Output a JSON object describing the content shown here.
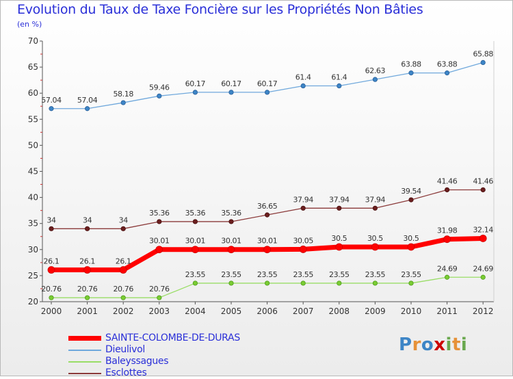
{
  "title": "Evolution du Taux de Taxe Foncière sur les Propriétés Non Bâties",
  "unit_label": "(en %)",
  "logo_text": "Proxiti",
  "chart_data": {
    "type": "line",
    "title": "Evolution du Taux de Taxe Foncière sur les Propriétés Non Bâties",
    "ylabel": "(en %)",
    "xlabel": "",
    "x": [
      "2000",
      "2001",
      "2002",
      "2003",
      "2004",
      "2005",
      "2006",
      "2007",
      "2008",
      "2009",
      "2010",
      "2011",
      "2012"
    ],
    "ylim": [
      20,
      70
    ],
    "yticks": [
      20,
      25,
      30,
      35,
      40,
      45,
      50,
      55,
      60,
      65,
      70
    ],
    "grid": false,
    "legend": "bottom-left",
    "series": [
      {
        "name": "SAINTE-COLOMBE-DE-DURAS",
        "color": "#ff0000",
        "values": [
          26.1,
          26.1,
          26.1,
          30.01,
          30.01,
          30.01,
          30.01,
          30.05,
          30.5,
          30.5,
          30.5,
          31.98,
          32.14
        ],
        "labels": [
          "26.1",
          "26.1",
          "26.1",
          "30.01",
          "30.01",
          "30.01",
          "30.01",
          "30.05",
          "30.5",
          "30.5",
          "30.5",
          "31.98",
          "32.14"
        ]
      },
      {
        "name": "Dieulivol",
        "color": "#6fa8dc",
        "values": [
          57.04,
          57.04,
          58.18,
          59.46,
          60.17,
          60.17,
          60.17,
          61.4,
          61.4,
          62.63,
          63.88,
          63.88,
          65.88
        ],
        "labels": [
          "57.04",
          "57.04",
          "58.18",
          "59.46",
          "60.17",
          "60.17",
          "60.17",
          "61.4",
          "61.4",
          "62.63",
          "63.88",
          "63.88",
          "65.88"
        ]
      },
      {
        "name": "Baleyssagues",
        "color": "#99dd66",
        "values": [
          20.76,
          20.76,
          20.76,
          20.76,
          23.55,
          23.55,
          23.55,
          23.55,
          23.55,
          23.55,
          23.55,
          24.69,
          24.69
        ],
        "labels": [
          "20.76",
          "20.76",
          "20.76",
          "20.76",
          "23.55",
          "23.55",
          "23.55",
          "23.55",
          "23.55",
          "23.55",
          "23.55",
          "24.69",
          "24.69"
        ]
      },
      {
        "name": "Esclottes",
        "color": "#8b3a3a",
        "values": [
          34,
          34,
          34,
          35.36,
          35.36,
          35.36,
          36.65,
          37.94,
          37.94,
          37.94,
          39.54,
          41.46,
          41.46
        ],
        "labels": [
          "34",
          "34",
          "34",
          "35.36",
          "35.36",
          "35.36",
          "36.65",
          "37.94",
          "37.94",
          "37.94",
          "39.54",
          "41.46",
          "41.46"
        ]
      }
    ]
  }
}
